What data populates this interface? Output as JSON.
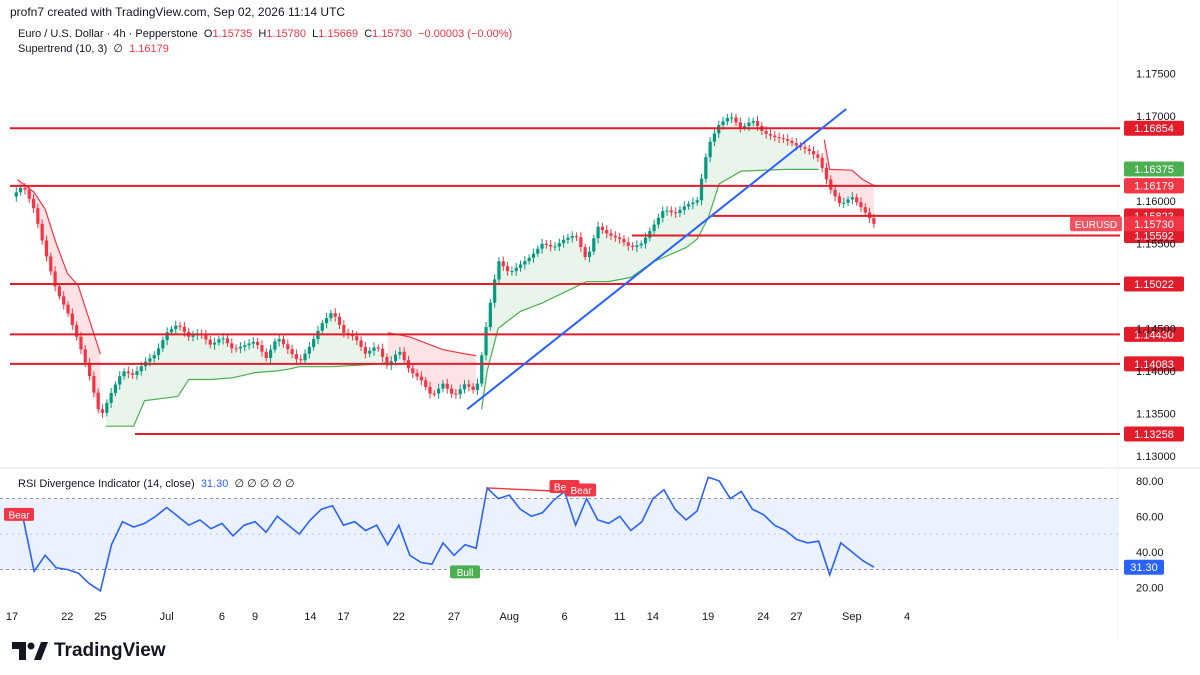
{
  "header": {
    "created": "profn7 created with TradingView.com, Sep 02, 2026 11:14 UTC"
  },
  "legend": {
    "symbol": "Euro / U.S. Dollar · 4h · Pepperstone",
    "open_label": "O",
    "open": "1.15735",
    "high_label": "H",
    "high": "1.15780",
    "low_label": "L",
    "low": "1.15669",
    "close_label": "C",
    "close": "1.15730",
    "change": "−0.00003 (−0.00%)",
    "supertrend_label": "Supertrend (10, 3)",
    "supertrend_sym": "∅",
    "supertrend_value": "1.16179",
    "rsi_label": "RSI Divergence Indicator (14, close)",
    "rsi_value": "31.30",
    "rsi_syms": "∅ ∅ ∅ ∅ ∅"
  },
  "brand": {
    "name": "TradingView"
  },
  "colors": {
    "bull": "#089981",
    "bear": "#f23645",
    "level": "#e31c2b",
    "trend": "#2962ff",
    "rsi": "#2962ff",
    "supertrend_up": "#4caf50",
    "supertrend_down": "#f23645"
  },
  "chart_data": [
    {
      "type": "candlestick",
      "symbol": "EURUSD",
      "timeframe": "4h",
      "x_ticks": [
        {
          "label": "17",
          "t": 0
        },
        {
          "label": "22",
          "t": 5
        },
        {
          "label": "25",
          "t": 8
        },
        {
          "label": "Jul",
          "t": 14
        },
        {
          "label": "6",
          "t": 19
        },
        {
          "label": "9",
          "t": 22
        },
        {
          "label": "14",
          "t": 27
        },
        {
          "label": "17",
          "t": 30
        },
        {
          "label": "22",
          "t": 35
        },
        {
          "label": "27",
          "t": 40
        },
        {
          "label": "Aug",
          "t": 45
        },
        {
          "label": "6",
          "t": 50
        },
        {
          "label": "11",
          "t": 55
        },
        {
          "label": "14",
          "t": 58
        },
        {
          "label": "19",
          "t": 63
        },
        {
          "label": "24",
          "t": 68
        },
        {
          "label": "27",
          "t": 71
        },
        {
          "label": "Sep",
          "t": 76
        },
        {
          "label": "4",
          "t": 81
        }
      ],
      "price_ticks": [
        "1.17500",
        "1.17000",
        "1.16000",
        "1.15500",
        "1.14500",
        "1.14000",
        "1.13500",
        "1.13000"
      ],
      "ylim": [
        1.13,
        1.1775
      ],
      "price_path": [
        [
          0,
          1.1605
        ],
        [
          1,
          1.1618
        ],
        [
          2,
          1.159
        ],
        [
          3,
          1.154
        ],
        [
          4,
          1.1495
        ],
        [
          5,
          1.147
        ],
        [
          6,
          1.1435
        ],
        [
          7,
          1.1395
        ],
        [
          8,
          1.1345
        ],
        [
          9,
          1.1375
        ],
        [
          10,
          1.14
        ],
        [
          11,
          1.1395
        ],
        [
          12,
          1.141
        ],
        [
          13,
          1.142
        ],
        [
          14,
          1.1445
        ],
        [
          15,
          1.1455
        ],
        [
          16,
          1.144
        ],
        [
          17,
          1.1445
        ],
        [
          18,
          1.143
        ],
        [
          19,
          1.144
        ],
        [
          20,
          1.1425
        ],
        [
          21,
          1.143
        ],
        [
          22,
          1.1435
        ],
        [
          23,
          1.1415
        ],
        [
          24,
          1.144
        ],
        [
          25,
          1.1425
        ],
        [
          26,
          1.141
        ],
        [
          27,
          1.143
        ],
        [
          28,
          1.1455
        ],
        [
          29,
          1.147
        ],
        [
          30,
          1.1445
        ],
        [
          31,
          1.144
        ],
        [
          32,
          1.142
        ],
        [
          33,
          1.143
        ],
        [
          34,
          1.1405
        ],
        [
          35,
          1.1425
        ],
        [
          36,
          1.14
        ],
        [
          37,
          1.139
        ],
        [
          38,
          1.137
        ],
        [
          39,
          1.1385
        ],
        [
          40,
          1.137
        ],
        [
          41,
          1.1385
        ],
        [
          42,
          1.1375
        ],
        [
          43,
          1.146
        ],
        [
          44,
          1.153
        ],
        [
          45,
          1.1515
        ],
        [
          46,
          1.1525
        ],
        [
          47,
          1.1535
        ],
        [
          48,
          1.155
        ],
        [
          49,
          1.1545
        ],
        [
          50,
          1.1555
        ],
        [
          51,
          1.156
        ],
        [
          52,
          1.153
        ],
        [
          53,
          1.157
        ],
        [
          54,
          1.156
        ],
        [
          55,
          1.1555
        ],
        [
          56,
          1.1545
        ],
        [
          57,
          1.155
        ],
        [
          58,
          1.157
        ],
        [
          59,
          1.159
        ],
        [
          60,
          1.1585
        ],
        [
          61,
          1.1595
        ],
        [
          62,
          1.16
        ],
        [
          63,
          1.1665
        ],
        [
          64,
          1.169
        ],
        [
          65,
          1.17
        ],
        [
          66,
          1.1685
        ],
        [
          67,
          1.1695
        ],
        [
          68,
          1.168
        ],
        [
          69,
          1.1675
        ],
        [
          70,
          1.1672
        ],
        [
          71,
          1.1665
        ],
        [
          72,
          1.166
        ],
        [
          73,
          1.165
        ],
        [
          74,
          1.1615
        ],
        [
          75,
          1.1595
        ],
        [
          76,
          1.1605
        ],
        [
          77,
          1.159
        ],
        [
          78,
          1.1573
        ]
      ],
      "supertrend": [
        {
          "dir": "down",
          "points": [
            [
              0.5,
              1.1625
            ],
            [
              2,
              1.161
            ],
            [
              3,
              1.159
            ],
            [
              4,
              1.155
            ],
            [
              5,
              1.1515
            ],
            [
              6,
              1.15
            ],
            [
              7,
              1.146
            ],
            [
              8,
              1.142
            ]
          ]
        },
        {
          "dir": "up",
          "points": [
            [
              8.5,
              1.1335
            ],
            [
              11,
              1.1335
            ],
            [
              12,
              1.1365
            ],
            [
              15,
              1.137
            ],
            [
              16,
              1.139
            ],
            [
              18,
              1.139
            ],
            [
              20,
              1.1392
            ],
            [
              22,
              1.1398
            ],
            [
              24,
              1.14
            ],
            [
              25,
              1.1402
            ],
            [
              26,
              1.1405
            ],
            [
              29,
              1.1405
            ],
            [
              33,
              1.1408
            ],
            [
              34,
              1.141
            ]
          ]
        },
        {
          "dir": "down",
          "points": [
            [
              34,
              1.1445
            ],
            [
              36,
              1.144
            ],
            [
              39,
              1.1425
            ],
            [
              41,
              1.142
            ],
            [
              42,
              1.1418
            ]
          ]
        },
        {
          "dir": "up",
          "points": [
            [
              42.5,
              1.1355
            ],
            [
              43,
              1.14
            ],
            [
              44,
              1.145
            ],
            [
              46,
              1.147
            ],
            [
              48,
              1.148
            ],
            [
              52,
              1.1505
            ],
            [
              54,
              1.1505
            ],
            [
              56,
              1.151
            ],
            [
              58,
              1.1528
            ],
            [
              61,
              1.1545
            ],
            [
              62,
              1.1555
            ],
            [
              63,
              1.158
            ],
            [
              64,
              1.162
            ],
            [
              66,
              1.1635
            ],
            [
              70,
              1.1637
            ],
            [
              73,
              1.1637
            ]
          ]
        },
        {
          "dir": "down",
          "points": [
            [
              73.5,
              1.1672
            ],
            [
              74,
              1.1637
            ],
            [
              76,
              1.1636
            ],
            [
              77,
              1.1625
            ],
            [
              78,
              1.1618
            ]
          ]
        }
      ],
      "horizontal_levels": [
        {
          "label": "1.16854",
          "price": 1.16854
        },
        {
          "label": "1.16176",
          "price": 1.16176
        },
        {
          "label": "1.15823",
          "price": 1.15823
        },
        {
          "label": "1.15592",
          "price": 1.15592
        },
        {
          "label": "1.15022",
          "price": 1.15022
        },
        {
          "label": "1.14430",
          "price": 1.1443
        },
        {
          "label": "1.14083",
          "price": 1.14083
        },
        {
          "label": "1.13258",
          "price": 1.13258
        }
      ],
      "price_labels": [
        {
          "label": "1.16375",
          "price": 1.16375,
          "color": "#4caf50"
        },
        {
          "label": "1.16179",
          "price": 1.16179,
          "color": "#f23645"
        },
        {
          "label": "1.15730",
          "price": 1.1573,
          "color": "#f23645",
          "tag": "EURUSD"
        }
      ],
      "trendline": [
        [
          41.2,
          1.1355
        ],
        [
          75.5,
          1.1708
        ]
      ]
    },
    {
      "type": "line",
      "title": "RSI Divergence Indicator (14, close)",
      "ylim": [
        10,
        85
      ],
      "y_ticks": [
        "80.00",
        "60.00",
        "40.00",
        "20.00"
      ],
      "bands": [
        30,
        70
      ],
      "midline": 50,
      "values": [
        [
          0,
          62
        ],
        [
          1,
          59
        ],
        [
          2,
          29
        ],
        [
          3,
          38
        ],
        [
          4,
          31
        ],
        [
          5,
          30
        ],
        [
          6,
          28
        ],
        [
          7,
          22
        ],
        [
          8,
          18
        ],
        [
          9,
          44
        ],
        [
          10,
          57
        ],
        [
          11,
          54
        ],
        [
          12,
          56
        ],
        [
          13,
          60
        ],
        [
          14,
          65
        ],
        [
          15,
          60
        ],
        [
          16,
          55
        ],
        [
          17,
          58
        ],
        [
          18,
          53
        ],
        [
          19,
          56
        ],
        [
          20,
          49
        ],
        [
          21,
          55
        ],
        [
          22,
          57
        ],
        [
          23,
          51
        ],
        [
          24,
          60
        ],
        [
          25,
          55
        ],
        [
          26,
          50
        ],
        [
          27,
          58
        ],
        [
          28,
          64
        ],
        [
          29,
          66
        ],
        [
          30,
          55
        ],
        [
          31,
          57
        ],
        [
          32,
          52
        ],
        [
          33,
          55
        ],
        [
          34,
          44
        ],
        [
          35,
          55
        ],
        [
          36,
          38
        ],
        [
          37,
          34
        ],
        [
          38,
          33
        ],
        [
          39,
          45
        ],
        [
          40,
          38
        ],
        [
          41,
          44
        ],
        [
          42,
          42
        ],
        [
          43,
          76
        ],
        [
          44,
          70
        ],
        [
          45,
          72
        ],
        [
          46,
          64
        ],
        [
          47,
          60
        ],
        [
          48,
          62
        ],
        [
          49,
          69
        ],
        [
          50,
          74
        ],
        [
          51,
          55
        ],
        [
          52,
          70
        ],
        [
          53,
          58
        ],
        [
          54,
          56
        ],
        [
          55,
          60
        ],
        [
          56,
          52
        ],
        [
          57,
          57
        ],
        [
          58,
          70
        ],
        [
          59,
          75
        ],
        [
          60,
          64
        ],
        [
          61,
          58
        ],
        [
          62,
          63
        ],
        [
          63,
          82
        ],
        [
          64,
          80
        ],
        [
          65,
          70
        ],
        [
          66,
          74
        ],
        [
          67,
          64
        ],
        [
          68,
          61
        ],
        [
          69,
          55
        ],
        [
          70,
          52
        ],
        [
          71,
          47
        ],
        [
          72,
          45
        ],
        [
          73,
          46
        ],
        [
          74,
          27
        ],
        [
          75,
          45
        ],
        [
          76,
          40
        ],
        [
          77,
          35
        ],
        [
          78,
          31.3
        ]
      ],
      "divergence_markers": [
        {
          "label": "Bear",
          "x": 0,
          "y": 60
        },
        {
          "label": "Bear",
          "x": 50,
          "y": 74
        },
        {
          "label": "Bear",
          "x": 51.5,
          "y": 72
        },
        {
          "label": "Bull",
          "x": 41,
          "y": 36
        }
      ],
      "divergence_line": [
        [
          43,
          76
        ],
        [
          50,
          74
        ]
      ],
      "current_label": "31.30"
    }
  ]
}
